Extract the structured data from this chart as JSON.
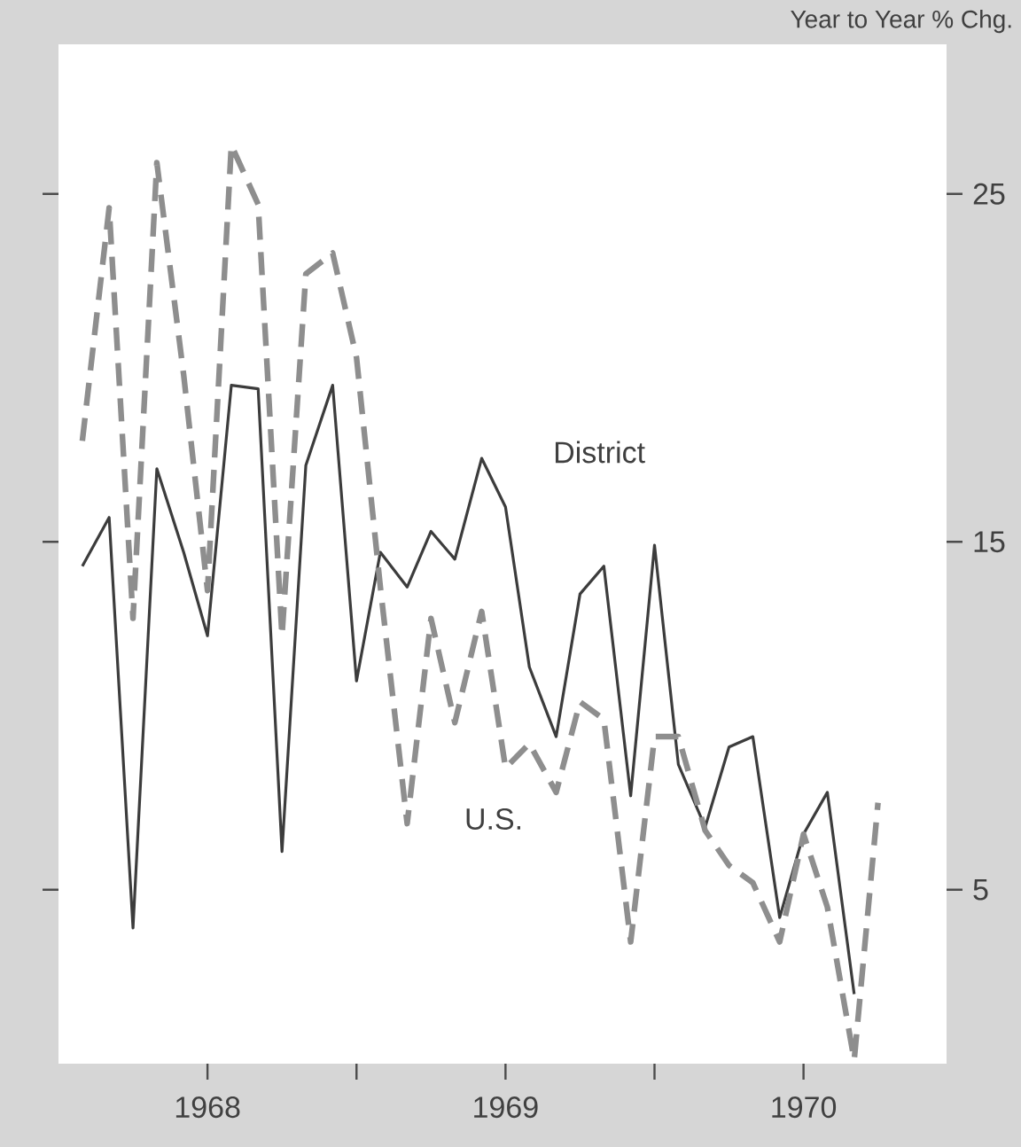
{
  "chart_data": {
    "type": "line",
    "ylabel": "Year to Year % Chg.",
    "x": [
      1968.08,
      1968.17,
      1968.25,
      1968.33,
      1968.42,
      1968.5,
      1968.58,
      1968.67,
      1968.75,
      1968.83,
      1968.92,
      1969.0,
      1969.08,
      1969.17,
      1969.25,
      1969.33,
      1969.42,
      1969.5,
      1969.58,
      1969.67,
      1969.75,
      1969.83,
      1969.92,
      1970.0,
      1970.08,
      1970.17,
      1970.25,
      1970.33,
      1970.42,
      1970.5,
      1970.58,
      1970.67,
      1970.75
    ],
    "series": [
      {
        "name": "District",
        "color": "#3c3c3c",
        "line_style": "solid",
        "values": [
          14.3,
          15.7,
          3.9,
          17.1,
          14.7,
          12.3,
          19.5,
          19.4,
          6.1,
          17.2,
          19.5,
          11.0,
          14.7,
          13.7,
          15.3,
          14.5,
          17.4,
          16.0,
          11.4,
          9.4,
          13.5,
          14.3,
          7.7,
          14.9,
          8.6,
          6.8,
          9.1,
          9.4,
          4.2,
          6.6,
          7.8,
          2.0,
          null
        ]
      },
      {
        "name": "U.S.",
        "color": "#8e8e8e",
        "line_style": "dashed",
        "values": [
          17.9,
          24.6,
          12.8,
          25.9,
          19.8,
          13.6,
          26.4,
          24.7,
          12.3,
          22.7,
          23.3,
          20.3,
          13.7,
          6.9,
          12.8,
          9.8,
          13.0,
          8.5,
          9.2,
          7.8,
          10.4,
          9.9,
          3.5,
          9.4,
          9.4,
          6.7,
          5.7,
          5.2,
          3.5,
          6.6,
          4.5,
          0.1,
          7.5
        ]
      }
    ],
    "xlim": [
      1968.0,
      1970.98
    ],
    "ylim": [
      0,
      29.3
    ],
    "xticks": [
      {
        "value": 1968.5,
        "label": "1968"
      },
      {
        "value": 1969.0,
        "label": null
      },
      {
        "value": 1969.5,
        "label": "1969"
      },
      {
        "value": 1970.0,
        "label": null
      },
      {
        "value": 1970.5,
        "label": "1970"
      }
    ],
    "yticks": [
      5,
      15,
      25
    ]
  }
}
